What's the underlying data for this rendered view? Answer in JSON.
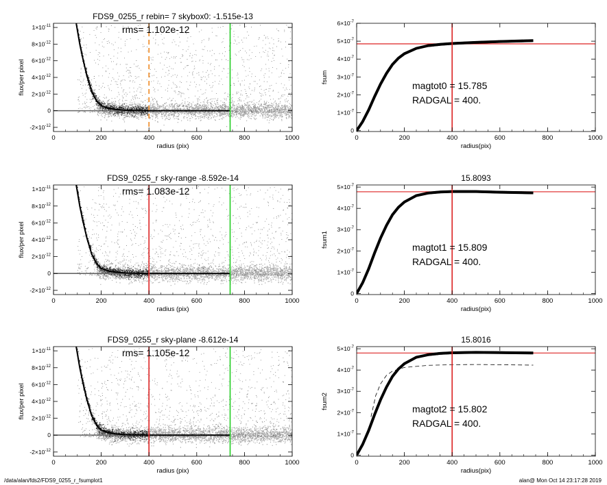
{
  "footer": {
    "left": "/data/alan/fds2/FDS9_0255_r_fsumplot1",
    "right": "alan@  Mon Oct 14 23:17:28 2019"
  },
  "colors": {
    "vline_green": "#22cc22",
    "vline_red": "#dd2222",
    "vline_orange": "#ee8822",
    "hline_red": "#dd2222",
    "scatter_light": "#a8a8a8",
    "scatter_dark": "#222222"
  },
  "chart_data": [
    {
      "type": "scatter",
      "title": "FDS9_0255_r rebin= 7    skybox0: -1.515e-13",
      "annotation": "rms= 1.102e-12",
      "xlabel": "radius (pix)",
      "ylabel": "flux/per pixel",
      "xlim": [
        0,
        1000
      ],
      "ylim": [
        -2.5e-12,
        1.05e-11
      ],
      "xticks": [
        "0",
        "200",
        "400",
        "600",
        "800",
        "1000"
      ],
      "yticks": [
        {
          "v": -2e-12,
          "m": "-2",
          "e": "-12"
        },
        {
          "v": 0,
          "m": "0",
          "e": ""
        },
        {
          "v": 2e-12,
          "m": "2",
          "e": "-12"
        },
        {
          "v": 4e-12,
          "m": "4",
          "e": "-12"
        },
        {
          "v": 6e-12,
          "m": "6",
          "e": "-12"
        },
        {
          "v": 8e-12,
          "m": "8",
          "e": "-12"
        },
        {
          "v": 1e-11,
          "m": "1",
          "e": "-11"
        }
      ],
      "vlines": [
        {
          "x": 400,
          "color": "orange",
          "dashed": true
        },
        {
          "x": 740,
          "color": "green",
          "dashed": false
        }
      ],
      "profile": [
        [
          95,
          1.05e-11
        ],
        [
          110,
          8e-12
        ],
        [
          125,
          6e-12
        ],
        [
          140,
          4.2e-12
        ],
        [
          160,
          2.3e-12
        ],
        [
          180,
          1.2e-12
        ],
        [
          200,
          6e-13
        ],
        [
          230,
          3e-13
        ],
        [
          260,
          1.5e-13
        ],
        [
          300,
          6e-14
        ],
        [
          400,
          0
        ],
        [
          740,
          0
        ]
      ]
    },
    {
      "type": "line",
      "title": "",
      "annotation_lines": [
        "magtot0 =  15.785",
        "RADGAL =    400."
      ],
      "xlabel": "radius(pix)",
      "ylabel": "fsum",
      "xlim": [
        0,
        1000
      ],
      "ylim": [
        -5e-09,
        6e-07
      ],
      "xticks": [
        "0",
        "200",
        "400",
        "600",
        "800",
        "1000"
      ],
      "yticks": [
        {
          "v": 0,
          "m": "0",
          "e": ""
        },
        {
          "v": 1e-07,
          "m": "1",
          "e": "-7"
        },
        {
          "v": 2e-07,
          "m": "2",
          "e": "-7"
        },
        {
          "v": 3e-07,
          "m": "3",
          "e": "-7"
        },
        {
          "v": 4e-07,
          "m": "4",
          "e": "-7"
        },
        {
          "v": 5e-07,
          "m": "5",
          "e": "-7"
        },
        {
          "v": 6e-07,
          "m": "6",
          "e": "-7"
        }
      ],
      "hline": 4.85e-07,
      "vlines": [
        {
          "x": 400,
          "color": "red",
          "dashed": false
        }
      ],
      "curve": [
        [
          0,
          0
        ],
        [
          25,
          5e-08
        ],
        [
          50,
          1.15e-07
        ],
        [
          75,
          1.9e-07
        ],
        [
          100,
          2.6e-07
        ],
        [
          125,
          3.2e-07
        ],
        [
          150,
          3.7e-07
        ],
        [
          175,
          4.05e-07
        ],
        [
          200,
          4.3e-07
        ],
        [
          250,
          4.6e-07
        ],
        [
          300,
          4.75e-07
        ],
        [
          350,
          4.82e-07
        ],
        [
          400,
          4.87e-07
        ],
        [
          500,
          4.93e-07
        ],
        [
          600,
          4.98e-07
        ],
        [
          740,
          5.03e-07
        ]
      ]
    },
    {
      "type": "scatter",
      "title": "FDS9_0255_r sky-range -8.592e-14",
      "annotation": "rms= 1.083e-12",
      "xlabel": "radius (pix)",
      "ylabel": "flux/per pixel",
      "xlim": [
        0,
        1000
      ],
      "ylim": [
        -2.5e-12,
        1.05e-11
      ],
      "xticks": [
        "0",
        "200",
        "400",
        "600",
        "800",
        "1000"
      ],
      "yticks": [
        {
          "v": -2e-12,
          "m": "-2",
          "e": "-12"
        },
        {
          "v": 0,
          "m": "0",
          "e": ""
        },
        {
          "v": 2e-12,
          "m": "2",
          "e": "-12"
        },
        {
          "v": 4e-12,
          "m": "4",
          "e": "-12"
        },
        {
          "v": 6e-12,
          "m": "6",
          "e": "-12"
        },
        {
          "v": 8e-12,
          "m": "8",
          "e": "-12"
        },
        {
          "v": 1e-11,
          "m": "1",
          "e": "-11"
        }
      ],
      "vlines": [
        {
          "x": 400,
          "color": "red",
          "dashed": false
        },
        {
          "x": 740,
          "color": "green",
          "dashed": false
        }
      ],
      "profile": [
        [
          95,
          1.05e-11
        ],
        [
          110,
          8e-12
        ],
        [
          125,
          6e-12
        ],
        [
          140,
          4.2e-12
        ],
        [
          160,
          2.3e-12
        ],
        [
          180,
          1.2e-12
        ],
        [
          200,
          6e-13
        ],
        [
          230,
          3e-13
        ],
        [
          260,
          1.5e-13
        ],
        [
          300,
          6e-14
        ],
        [
          400,
          0
        ],
        [
          740,
          0
        ]
      ]
    },
    {
      "type": "line",
      "title": "15.8093",
      "annotation_lines": [
        "magtot1 =  15.809",
        "RADGAL =    400."
      ],
      "xlabel": "radius(pix)",
      "ylabel": "fsum1",
      "xlim": [
        0,
        1000
      ],
      "ylim": [
        -5e-09,
        5.1e-07
      ],
      "xticks": [
        "0",
        "200",
        "400",
        "600",
        "800",
        "1000"
      ],
      "yticks": [
        {
          "v": 0,
          "m": "0",
          "e": ""
        },
        {
          "v": 1e-07,
          "m": "1",
          "e": "-7"
        },
        {
          "v": 2e-07,
          "m": "2",
          "e": "-7"
        },
        {
          "v": 3e-07,
          "m": "3",
          "e": "-7"
        },
        {
          "v": 4e-07,
          "m": "4",
          "e": "-7"
        },
        {
          "v": 5e-07,
          "m": "5",
          "e": "-7"
        }
      ],
      "hline": 4.78e-07,
      "vlines": [
        {
          "x": 400,
          "color": "red",
          "dashed": false
        }
      ],
      "curve": [
        [
          0,
          0
        ],
        [
          25,
          5e-08
        ],
        [
          50,
          1.15e-07
        ],
        [
          75,
          1.9e-07
        ],
        [
          100,
          2.6e-07
        ],
        [
          125,
          3.2e-07
        ],
        [
          150,
          3.7e-07
        ],
        [
          175,
          4.05e-07
        ],
        [
          200,
          4.3e-07
        ],
        [
          250,
          4.6e-07
        ],
        [
          300,
          4.72e-07
        ],
        [
          350,
          4.77e-07
        ],
        [
          400,
          4.79e-07
        ],
        [
          500,
          4.79e-07
        ],
        [
          600,
          4.76e-07
        ],
        [
          740,
          4.73e-07
        ]
      ]
    },
    {
      "type": "scatter",
      "title": "FDS9_0255_r sky-plane -8.612e-14",
      "annotation": "rms= 1.105e-12",
      "xlabel": "radius (pix)",
      "ylabel": "flux/per pixel",
      "xlim": [
        0,
        1000
      ],
      "ylim": [
        -2.5e-12,
        1.05e-11
      ],
      "xticks": [
        "0",
        "200",
        "400",
        "600",
        "800",
        "1000"
      ],
      "yticks": [
        {
          "v": -2e-12,
          "m": "-2",
          "e": "-12"
        },
        {
          "v": 0,
          "m": "0",
          "e": ""
        },
        {
          "v": 2e-12,
          "m": "2",
          "e": "-12"
        },
        {
          "v": 4e-12,
          "m": "4",
          "e": "-12"
        },
        {
          "v": 6e-12,
          "m": "6",
          "e": "-12"
        },
        {
          "v": 8e-12,
          "m": "8",
          "e": "-12"
        },
        {
          "v": 1e-11,
          "m": "1",
          "e": "-11"
        }
      ],
      "vlines": [
        {
          "x": 400,
          "color": "red",
          "dashed": false
        },
        {
          "x": 740,
          "color": "green",
          "dashed": false
        }
      ],
      "profile": [
        [
          95,
          1.05e-11
        ],
        [
          110,
          8e-12
        ],
        [
          125,
          6e-12
        ],
        [
          140,
          4.2e-12
        ],
        [
          160,
          2.3e-12
        ],
        [
          180,
          1.2e-12
        ],
        [
          200,
          6e-13
        ],
        [
          230,
          3e-13
        ],
        [
          260,
          1.5e-13
        ],
        [
          300,
          6e-14
        ],
        [
          400,
          0
        ],
        [
          740,
          0
        ]
      ]
    },
    {
      "type": "line",
      "title": "15.8016",
      "annotation_lines": [
        "magtot2 =  15.802",
        "RADGAL =    400."
      ],
      "xlabel": "radius(pix)",
      "ylabel": "fsum2",
      "xlim": [
        0,
        1000
      ],
      "ylim": [
        -5e-09,
        5.1e-07
      ],
      "xticks": [
        "0",
        "200",
        "400",
        "600",
        "800",
        "1000"
      ],
      "yticks": [
        {
          "v": 0,
          "m": "0",
          "e": ""
        },
        {
          "v": 1e-07,
          "m": "1",
          "e": "-7"
        },
        {
          "v": 2e-07,
          "m": "2",
          "e": "-7"
        },
        {
          "v": 3e-07,
          "m": "3",
          "e": "-7"
        },
        {
          "v": 4e-07,
          "m": "4",
          "e": "-7"
        },
        {
          "v": 5e-07,
          "m": "5",
          "e": "-7"
        }
      ],
      "hline": 4.8e-07,
      "vlines": [
        {
          "x": 400,
          "color": "red",
          "dashed": false
        }
      ],
      "curve": [
        [
          0,
          0
        ],
        [
          25,
          5e-08
        ],
        [
          50,
          1.15e-07
        ],
        [
          75,
          1.9e-07
        ],
        [
          100,
          2.6e-07
        ],
        [
          125,
          3.2e-07
        ],
        [
          150,
          3.7e-07
        ],
        [
          175,
          4.05e-07
        ],
        [
          200,
          4.3e-07
        ],
        [
          250,
          4.6e-07
        ],
        [
          300,
          4.72e-07
        ],
        [
          350,
          4.78e-07
        ],
        [
          400,
          4.81e-07
        ],
        [
          500,
          4.83e-07
        ],
        [
          600,
          4.82e-07
        ],
        [
          740,
          4.8e-07
        ]
      ],
      "dashed_curve": [
        [
          60,
          1.8e-07
        ],
        [
          80,
          2.8e-07
        ],
        [
          100,
          3.35e-07
        ],
        [
          125,
          3.75e-07
        ],
        [
          150,
          3.95e-07
        ],
        [
          200,
          4.12e-07
        ],
        [
          300,
          4.22e-07
        ],
        [
          400,
          4.25e-07
        ],
        [
          500,
          4.26e-07
        ],
        [
          600,
          4.25e-07
        ],
        [
          740,
          4.23e-07
        ]
      ]
    }
  ]
}
